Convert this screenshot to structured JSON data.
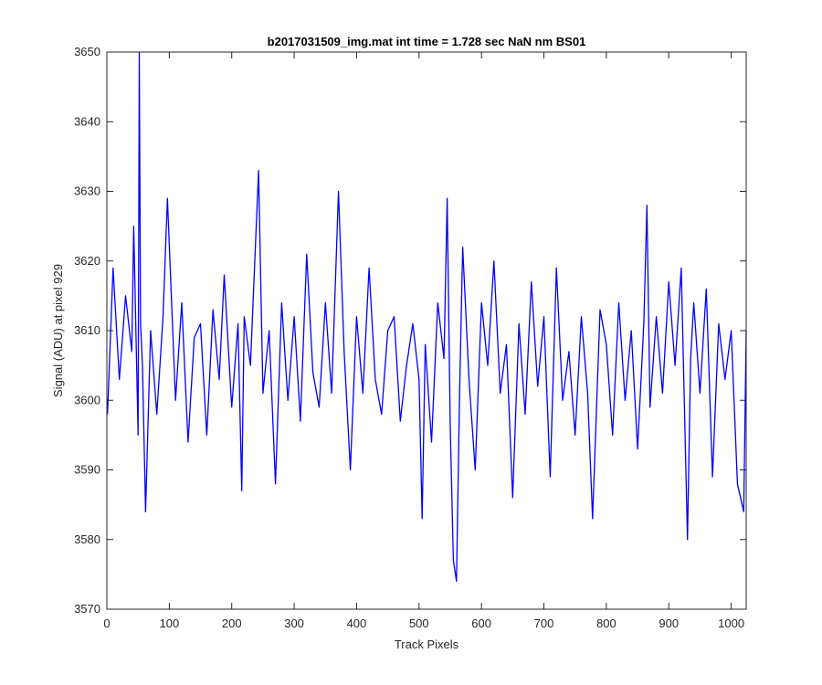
{
  "chart_data": {
    "type": "line",
    "title": "b2017031509_img.mat int time = 1.728 sec  NaN nm BS01",
    "xlabel": "Track Pixels",
    "ylabel": "Signal (ADU) at pixel 929",
    "xlim": [
      0,
      1024
    ],
    "ylim": [
      3570,
      3650
    ],
    "xticks": [
      0,
      100,
      200,
      300,
      400,
      500,
      600,
      700,
      800,
      900,
      1000
    ],
    "yticks": [
      3570,
      3580,
      3590,
      3600,
      3610,
      3620,
      3630,
      3640,
      3650
    ],
    "grid": false,
    "legend": "none",
    "series": [
      {
        "color": "#0000ff",
        "x": [
          1,
          10,
          20,
          30,
          40,
          43,
          50,
          52,
          54,
          57,
          62,
          70,
          80,
          90,
          97,
          110,
          120,
          130,
          140,
          150,
          160,
          170,
          180,
          188,
          200,
          210,
          216,
          220,
          230,
          243,
          250,
          260,
          270,
          280,
          290,
          300,
          310,
          320,
          330,
          340,
          350,
          360,
          371,
          380,
          390,
          400,
          410,
          420,
          430,
          440,
          450,
          460,
          470,
          480,
          490,
          500,
          505,
          510,
          520,
          530,
          540,
          545,
          550,
          555,
          560,
          565,
          570,
          580,
          590,
          600,
          610,
          620,
          630,
          640,
          650,
          660,
          670,
          680,
          690,
          700,
          710,
          720,
          730,
          740,
          750,
          760,
          770,
          778,
          790,
          800,
          810,
          820,
          830,
          840,
          850,
          860,
          865,
          870,
          880,
          890,
          900,
          910,
          920,
          930,
          935,
          940,
          950,
          960,
          970,
          980,
          990,
          1000,
          1010,
          1020,
          1024
        ],
        "y": [
          3598,
          3619,
          3603,
          3615,
          3607,
          3625,
          3595,
          3650,
          3611,
          3605,
          3584,
          3610,
          3598,
          3612,
          3629,
          3600,
          3614,
          3594,
          3609,
          3611,
          3595,
          3613,
          3603,
          3618,
          3599,
          3611,
          3587,
          3612,
          3605,
          3633,
          3601,
          3610,
          3588,
          3614,
          3600,
          3612,
          3597,
          3621,
          3604,
          3599,
          3614,
          3601,
          3630,
          3607,
          3590,
          3612,
          3601,
          3619,
          3603,
          3598,
          3610,
          3612,
          3597,
          3605,
          3611,
          3603,
          3583,
          3608,
          3594,
          3614,
          3606,
          3629,
          3596,
          3577,
          3574,
          3601,
          3622,
          3603,
          3590,
          3614,
          3605,
          3620,
          3601,
          3608,
          3586,
          3611,
          3598,
          3617,
          3602,
          3612,
          3589,
          3619,
          3600,
          3607,
          3595,
          3612,
          3601,
          3583,
          3613,
          3608,
          3595,
          3614,
          3600,
          3610,
          3593,
          3611,
          3628,
          3599,
          3612,
          3601,
          3617,
          3605,
          3619,
          3580,
          3606,
          3614,
          3601,
          3616,
          3589,
          3611,
          3603,
          3610,
          3588,
          3584,
          3610
        ]
      }
    ]
  }
}
